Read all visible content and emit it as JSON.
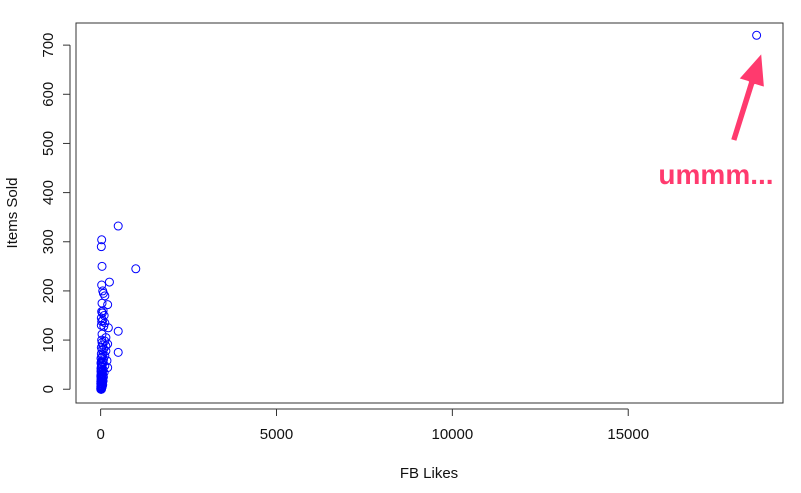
{
  "chart_data": {
    "type": "scatter",
    "title": "",
    "xlabel": "FB Likes",
    "ylabel": "Items Sold",
    "xlim": [
      -700,
      19400
    ],
    "ylim": [
      -28,
      745
    ],
    "x_ticks": [
      0,
      5000,
      10000,
      15000
    ],
    "x_tick_labels": [
      "0",
      "5000",
      "10000",
      "15000"
    ],
    "y_ticks": [
      0,
      100,
      200,
      300,
      400,
      500,
      600,
      700
    ],
    "y_tick_labels": [
      "0",
      "100",
      "200",
      "300",
      "400",
      "500",
      "600",
      "700"
    ],
    "grid": false,
    "point_style": "open circle",
    "point_color": "#0000ff",
    "x": [
      18650,
      500,
      1000,
      30,
      20,
      40,
      250,
      30,
      60,
      80,
      120,
      40,
      200,
      70,
      30,
      50,
      100,
      20,
      60,
      30,
      120,
      20,
      90,
      220,
      500,
      40,
      150,
      30,
      120,
      40,
      200,
      60,
      150,
      20,
      90,
      40,
      150,
      500,
      20,
      60,
      120,
      40,
      10,
      80,
      180,
      20,
      60,
      10,
      30,
      50,
      120,
      20,
      40,
      200,
      10,
      70,
      30,
      10,
      50,
      100,
      20,
      60,
      10,
      40,
      5,
      30,
      80,
      10,
      25,
      60,
      15,
      45,
      10,
      30,
      70,
      5,
      20,
      50,
      10,
      35,
      5,
      25,
      60,
      15,
      40,
      5,
      20,
      45,
      10,
      30,
      5,
      15,
      30,
      10,
      20,
      5,
      10,
      25,
      5,
      15
    ],
    "y": [
      720,
      332,
      245,
      304,
      290,
      250,
      218,
      212,
      200,
      195,
      190,
      175,
      172,
      160,
      158,
      155,
      150,
      145,
      140,
      138,
      135,
      130,
      128,
      125,
      118,
      112,
      105,
      100,
      98,
      95,
      92,
      90,
      88,
      85,
      82,
      80,
      78,
      75,
      72,
      70,
      68,
      65,
      63,
      60,
      58,
      56,
      55,
      53,
      52,
      50,
      48,
      46,
      45,
      44,
      42,
      40,
      38,
      36,
      35,
      34,
      32,
      30,
      29,
      28,
      27,
      26,
      25,
      24,
      23,
      22,
      21,
      20,
      19,
      18,
      17,
      16,
      15,
      14,
      13,
      12,
      11,
      10,
      9,
      8,
      7,
      6,
      5,
      5,
      4,
      4,
      3,
      3,
      2,
      2,
      1,
      1,
      0,
      0,
      0,
      0
    ],
    "annotation": {
      "text": "ummm...",
      "color": "#ff3a6e",
      "points_to": [
        18650,
        720
      ]
    }
  }
}
